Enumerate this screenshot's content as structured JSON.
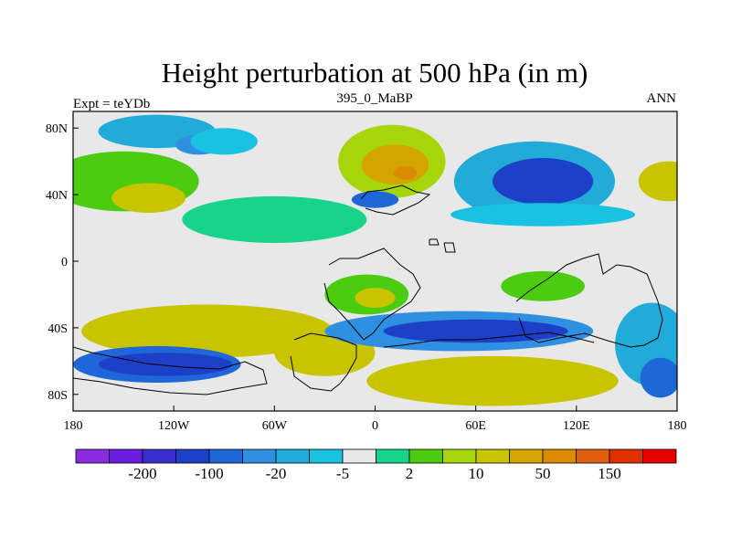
{
  "chart_data": {
    "type": "heatmap",
    "title": "Height perturbation at 500 hPa (in m)",
    "left_string": "Expt = teYDb",
    "center_string": "395_0_MaBP",
    "right_string": "ANN",
    "x_range": [
      -180,
      180
    ],
    "y_range": [
      -90,
      90
    ],
    "x_ticks": [
      {
        "value": -180,
        "label": "180"
      },
      {
        "value": -120,
        "label": "120W"
      },
      {
        "value": -60,
        "label": "60W"
      },
      {
        "value": 0,
        "label": "0"
      },
      {
        "value": 60,
        "label": "60E"
      },
      {
        "value": 120,
        "label": "120E"
      },
      {
        "value": 180,
        "label": "180"
      }
    ],
    "y_ticks": [
      {
        "value": 80,
        "label": "80N"
      },
      {
        "value": 40,
        "label": "40N"
      },
      {
        "value": 0,
        "label": "0"
      },
      {
        "value": -40,
        "label": "40S"
      },
      {
        "value": -80,
        "label": "80S"
      }
    ],
    "colorbar": {
      "colors": [
        "#8a2be2",
        "#6a1fe0",
        "#3a2ed0",
        "#1e40c8",
        "#1f66d9",
        "#2f8fe0",
        "#22abd8",
        "#19c2e0",
        "#e8e8e8",
        "#18d48a",
        "#4ccc10",
        "#a6d60a",
        "#c8c400",
        "#d4a400",
        "#dc8a00",
        "#e06010",
        "#e03000",
        "#e80000"
      ],
      "tick_labels": [
        "-200",
        "-100",
        "-20",
        "-5",
        "2",
        "10",
        "50",
        "150"
      ],
      "label_every": 2,
      "label_offset": 1
    },
    "blobs": [
      {
        "lon": -150,
        "lat": 48,
        "rlon": 45,
        "rlat": 18,
        "level": 10
      },
      {
        "lon": -135,
        "lat": 38,
        "rlon": 22,
        "rlat": 9,
        "level": 12
      },
      {
        "lon": -130,
        "lat": 78,
        "rlon": 35,
        "rlat": 10,
        "level": 6
      },
      {
        "lon": -105,
        "lat": 70,
        "rlon": 14,
        "rlat": 6,
        "level": 5
      },
      {
        "lon": -90,
        "lat": 72,
        "rlon": 20,
        "rlat": 8,
        "level": 7
      },
      {
        "lon": -60,
        "lat": 25,
        "rlon": 55,
        "rlat": 14,
        "level": 9
      },
      {
        "lon": 10,
        "lat": 60,
        "rlon": 32,
        "rlat": 22,
        "level": 11
      },
      {
        "lon": 12,
        "lat": 58,
        "rlon": 20,
        "rlat": 12,
        "level": 13
      },
      {
        "lon": 18,
        "lat": 53,
        "rlon": 7,
        "rlat": 4,
        "level": 14
      },
      {
        "lon": 95,
        "lat": 48,
        "rlon": 48,
        "rlat": 24,
        "level": 6
      },
      {
        "lon": 100,
        "lat": 48,
        "rlon": 30,
        "rlat": 14,
        "level": 3
      },
      {
        "lon": 175,
        "lat": 48,
        "rlon": 18,
        "rlat": 12,
        "level": 12
      },
      {
        "lon": 0,
        "lat": 37,
        "rlon": 14,
        "rlat": 5,
        "level": 4
      },
      {
        "lon": 100,
        "lat": 28,
        "rlon": 55,
        "rlat": 7,
        "level": 7
      },
      {
        "lon": -5,
        "lat": -20,
        "rlon": 25,
        "rlat": 12,
        "level": 10
      },
      {
        "lon": 0,
        "lat": -22,
        "rlon": 12,
        "rlat": 6,
        "level": 12
      },
      {
        "lon": -100,
        "lat": -42,
        "rlon": 75,
        "rlat": 16,
        "level": 12
      },
      {
        "lon": -30,
        "lat": -55,
        "rlon": 30,
        "rlat": 14,
        "level": 12
      },
      {
        "lon": 50,
        "lat": -42,
        "rlon": 80,
        "rlat": 12,
        "level": 5
      },
      {
        "lon": 60,
        "lat": -42,
        "rlon": 55,
        "rlat": 7,
        "level": 3
      },
      {
        "lon": 70,
        "lat": -72,
        "rlon": 75,
        "rlat": 15,
        "level": 12
      },
      {
        "lon": -130,
        "lat": -62,
        "rlon": 50,
        "rlat": 11,
        "level": 4
      },
      {
        "lon": -125,
        "lat": -62,
        "rlon": 40,
        "rlat": 7,
        "level": 3
      },
      {
        "lon": 100,
        "lat": -15,
        "rlon": 25,
        "rlat": 9,
        "level": 10
      },
      {
        "lon": 165,
        "lat": -50,
        "rlon": 22,
        "rlat": 25,
        "level": 6
      },
      {
        "lon": 170,
        "lat": -70,
        "rlon": 12,
        "rlat": 12,
        "level": 4
      }
    ]
  }
}
